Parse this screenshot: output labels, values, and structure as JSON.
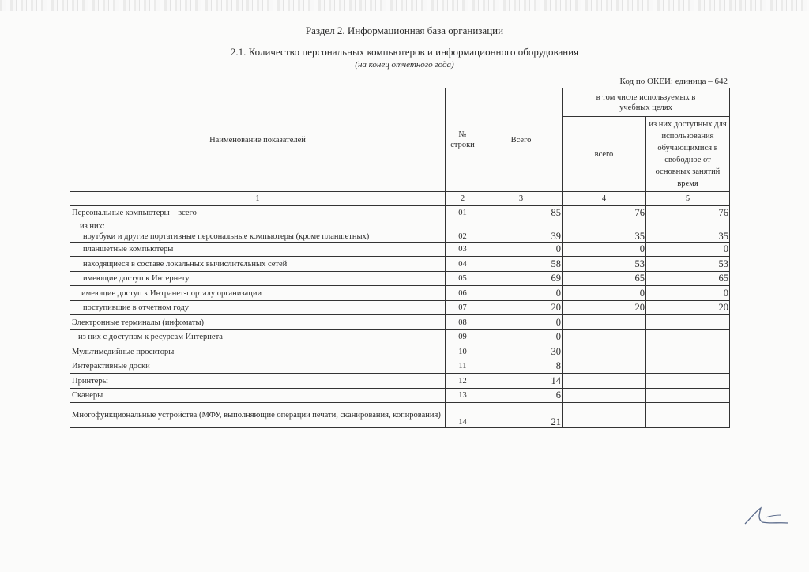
{
  "section_title": "Раздел 2. Информационная база организации",
  "table_title": "2.1. Количество персональных компьютеров и информационного оборудования",
  "table_subtitle": "(на конец отчетного года)",
  "okei": "Код по ОКЕИ: единица – 642",
  "headers": {
    "name": "Наименование показателей",
    "row_no": "№ строки",
    "total": "Всего",
    "educational_group": "в том числе используемых в учебных целях",
    "educational_total": "всего",
    "free_time": "из них доступных для использования обучающимися в свободное от основных занятий время",
    "col_numbers": [
      "1",
      "2",
      "3",
      "4",
      "5"
    ]
  },
  "rows": [
    {
      "name": "Персональные компьютеры – всего",
      "no": "01",
      "total": "85",
      "edu": "76",
      "free": "76"
    },
    {
      "prefix": "из них:",
      "name": "ноутбуки и другие портативные персональные компьютеры (кроме планшетных)",
      "no": "02",
      "total": "39",
      "edu": "35",
      "free": "35"
    },
    {
      "name": "планшетные компьютеры",
      "no": "03",
      "total": "0",
      "edu": "0",
      "free": "0"
    },
    {
      "name": "находящиеся в составе локальных вычислительных сетей",
      "no": "04",
      "total": "58",
      "edu": "53",
      "free": "53"
    },
    {
      "name": "имеющие доступ к Интернету",
      "no": "05",
      "total": "69",
      "edu": "65",
      "free": "65"
    },
    {
      "name": "имеющие доступ к Интранет-порталу организации",
      "no": "06",
      "total": "0",
      "edu": "0",
      "free": "0"
    },
    {
      "name": "поступившие в отчетном году",
      "no": "07",
      "total": "20",
      "edu": "20",
      "free": "20"
    },
    {
      "name": "Электронные терминалы (инфоматы)",
      "no": "08",
      "total": "0",
      "edu": "",
      "free": ""
    },
    {
      "name": "из них с доступом к ресурсам Интернета",
      "no": "09",
      "total": "0",
      "edu": "",
      "free": ""
    },
    {
      "name": "Мультимедийные проекторы",
      "no": "10",
      "total": "30",
      "edu": "",
      "free": ""
    },
    {
      "name": "Интерактивные доски",
      "no": "11",
      "total": "8",
      "edu": "",
      "free": ""
    },
    {
      "name": "Принтеры",
      "no": "12",
      "total": "14",
      "edu": "",
      "free": ""
    },
    {
      "name": "Сканеры",
      "no": "13",
      "total": "6",
      "edu": "",
      "free": ""
    },
    {
      "name": "Многофункциональные устройства (МФУ, выполняющие операции печати, сканирования, копирования)",
      "no": "14",
      "total": "21",
      "edu": "",
      "free": ""
    }
  ]
}
